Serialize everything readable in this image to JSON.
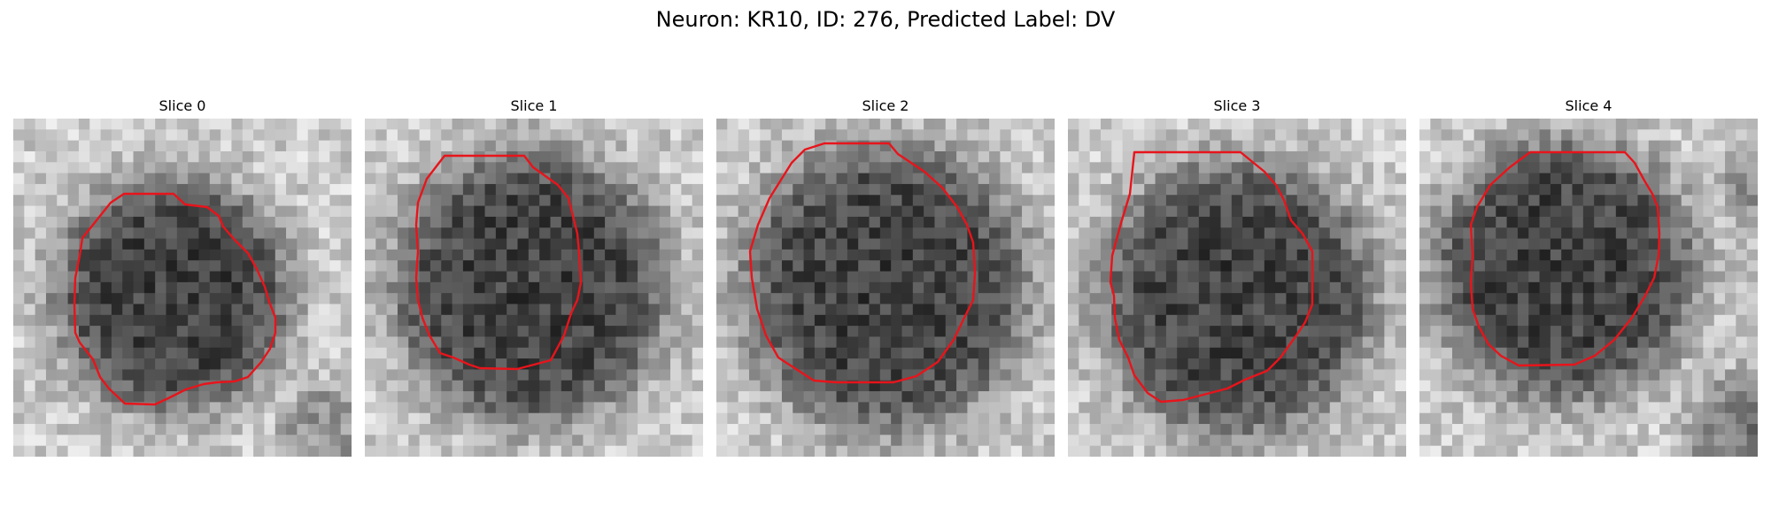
{
  "figure": {
    "title": "Neuron: KR10, ID: 276, Predicted Label: DV"
  },
  "panels": [
    {
      "label": "Slice 0"
    },
    {
      "label": "Slice 1"
    },
    {
      "label": "Slice 2"
    },
    {
      "label": "Slice 3"
    },
    {
      "label": "Slice 4"
    }
  ],
  "colors": {
    "contour": "#e8141b",
    "background": "#ffffff"
  }
}
